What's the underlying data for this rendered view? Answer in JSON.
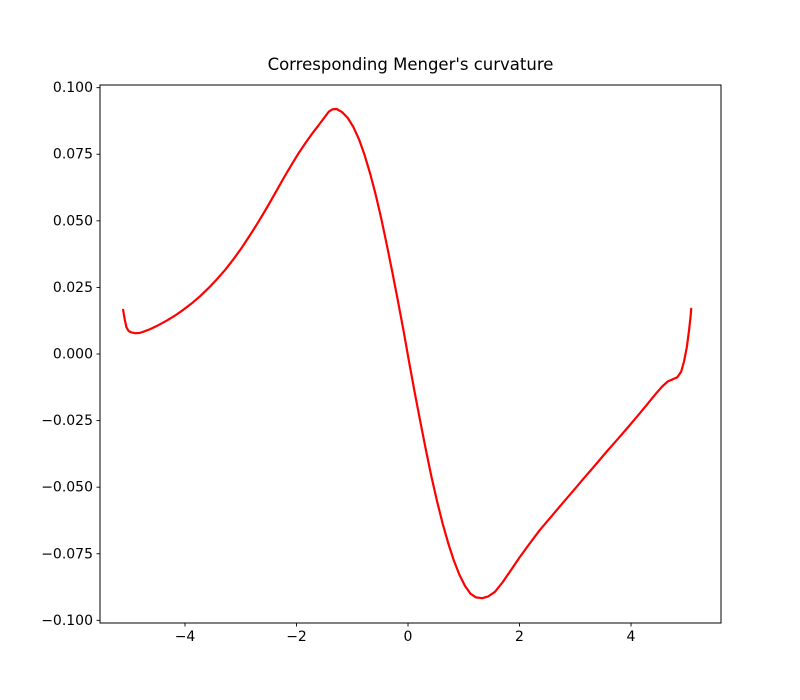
{
  "figure": {
    "background": "#ffffff"
  },
  "chart_data": {
    "type": "line",
    "title": "Corresponding Menger's curvature",
    "xlabel": "",
    "ylabel": "",
    "xlim": [
      -5.525,
      5.614
    ],
    "ylim": [
      -0.101,
      0.101
    ],
    "x_ticks": [
      -4,
      -2,
      0,
      2,
      4
    ],
    "y_ticks": [
      -0.1,
      -0.075,
      -0.05,
      -0.025,
      0.0,
      0.025,
      0.05,
      0.075,
      0.1
    ],
    "grid": false,
    "legend_position": "none",
    "axis_color": "#000000",
    "series": [
      {
        "name": "menger-curvature",
        "color": "#ff0000",
        "line_width": 2.2,
        "points": [
          [
            -5.11,
            0.0166
          ],
          [
            -5.08,
            0.0128
          ],
          [
            -5.05,
            0.01
          ],
          [
            -5.01,
            0.0086
          ],
          [
            -4.96,
            0.0081
          ],
          [
            -4.89,
            0.0078
          ],
          [
            -4.82,
            0.0079
          ],
          [
            -4.73,
            0.0085
          ],
          [
            -4.62,
            0.0094
          ],
          [
            -4.48,
            0.0108
          ],
          [
            -4.33,
            0.0125
          ],
          [
            -4.18,
            0.0144
          ],
          [
            -4.03,
            0.0166
          ],
          [
            -3.88,
            0.019
          ],
          [
            -3.73,
            0.0217
          ],
          [
            -3.58,
            0.0247
          ],
          [
            -3.43,
            0.028
          ],
          [
            -3.28,
            0.0316
          ],
          [
            -3.13,
            0.0356
          ],
          [
            -2.98,
            0.04
          ],
          [
            -2.83,
            0.0447
          ],
          [
            -2.68,
            0.0497
          ],
          [
            -2.53,
            0.055
          ],
          [
            -2.38,
            0.0605
          ],
          [
            -2.23,
            0.0661
          ],
          [
            -2.08,
            0.0714
          ],
          [
            -1.95,
            0.0758
          ],
          [
            -1.83,
            0.0795
          ],
          [
            -1.71,
            0.083
          ],
          [
            -1.6,
            0.086
          ],
          [
            -1.5,
            0.0888
          ],
          [
            -1.42,
            0.091
          ],
          [
            -1.35,
            0.0919
          ],
          [
            -1.28,
            0.092
          ],
          [
            -1.18,
            0.0908
          ],
          [
            -1.08,
            0.0886
          ],
          [
            -0.98,
            0.0852
          ],
          [
            -0.88,
            0.0806
          ],
          [
            -0.78,
            0.0748
          ],
          [
            -0.68,
            0.0678
          ],
          [
            -0.58,
            0.0598
          ],
          [
            -0.48,
            0.0508
          ],
          [
            -0.38,
            0.041
          ],
          [
            -0.28,
            0.0306
          ],
          [
            -0.18,
            0.0198
          ],
          [
            -0.08,
            0.0086
          ],
          [
            0.02,
            -0.003
          ],
          [
            0.12,
            -0.0144
          ],
          [
            0.22,
            -0.0254
          ],
          [
            0.32,
            -0.036
          ],
          [
            0.42,
            -0.046
          ],
          [
            0.52,
            -0.0552
          ],
          [
            0.62,
            -0.0636
          ],
          [
            0.72,
            -0.071
          ],
          [
            0.82,
            -0.0774
          ],
          [
            0.92,
            -0.0828
          ],
          [
            1.02,
            -0.087
          ],
          [
            1.12,
            -0.09
          ],
          [
            1.22,
            -0.0914
          ],
          [
            1.33,
            -0.0917
          ],
          [
            1.44,
            -0.091
          ],
          [
            1.56,
            -0.0893
          ],
          [
            1.7,
            -0.0856
          ],
          [
            1.85,
            -0.081
          ],
          [
            2.0,
            -0.0764
          ],
          [
            2.18,
            -0.0712
          ],
          [
            2.36,
            -0.0662
          ],
          [
            2.55,
            -0.0615
          ],
          [
            2.75,
            -0.0566
          ],
          [
            2.95,
            -0.0517
          ],
          [
            3.15,
            -0.0468
          ],
          [
            3.35,
            -0.0419
          ],
          [
            3.55,
            -0.037
          ],
          [
            3.75,
            -0.0322
          ],
          [
            3.95,
            -0.0274
          ],
          [
            4.12,
            -0.0232
          ],
          [
            4.28,
            -0.0192
          ],
          [
            4.43,
            -0.0153
          ],
          [
            4.56,
            -0.0122
          ],
          [
            4.66,
            -0.0103
          ],
          [
            4.75,
            -0.0095
          ],
          [
            4.83,
            -0.0087
          ],
          [
            4.9,
            -0.0066
          ],
          [
            4.95,
            -0.0028
          ],
          [
            5.0,
            0.0025
          ],
          [
            5.04,
            0.0088
          ],
          [
            5.07,
            0.0145
          ],
          [
            5.08,
            0.017
          ]
        ]
      }
    ]
  }
}
